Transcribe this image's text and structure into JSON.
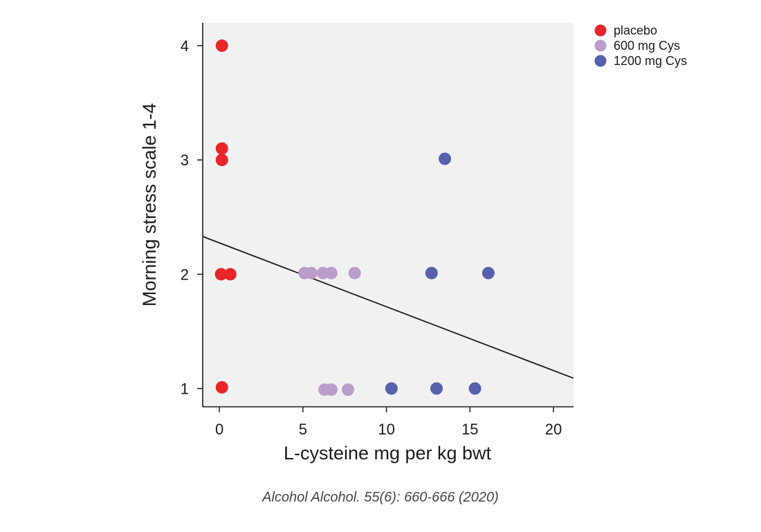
{
  "chart_data": {
    "type": "scatter",
    "title": "",
    "xlabel": "L-cysteine mg per kg bwt",
    "ylabel": "Morning stress scale 1-4",
    "xlim": [
      -1,
      21.2
    ],
    "ylim": [
      0.84,
      4.2
    ],
    "xticks": [
      "0",
      "5",
      "10",
      "15",
      "20"
    ],
    "xtick_values": [
      0,
      5,
      10,
      15,
      20
    ],
    "yticks": [
      "1",
      "2",
      "3",
      "4"
    ],
    "ytick_values": [
      1,
      2,
      3,
      4
    ],
    "grid": false,
    "background": "#f1f1f2",
    "legend_position": "top-right",
    "series": [
      {
        "name": "placebo",
        "color": "#e8262a",
        "x": [
          0.15,
          0.15,
          0.15,
          0.1,
          0.65,
          0.15
        ],
        "y": [
          4.0,
          3.1,
          3.0,
          2.0,
          2.0,
          1.01
        ]
      },
      {
        "name": "600 mg Cys",
        "color": "#bb9ccb",
        "x": [
          5.1,
          5.5,
          6.2,
          6.7,
          8.1,
          6.3,
          6.7,
          7.7
        ],
        "y": [
          2.01,
          2.01,
          2.01,
          2.01,
          2.01,
          0.99,
          0.99,
          0.99
        ]
      },
      {
        "name": "1200 mg Cys",
        "color": "#5660ad",
        "x": [
          13.5,
          12.7,
          16.1,
          10.3,
          13.0,
          15.3
        ],
        "y": [
          3.01,
          2.01,
          2.01,
          1.0,
          1.0,
          1.0
        ]
      }
    ],
    "trendline": {
      "x": [
        -1,
        21.2
      ],
      "y": [
        2.33,
        1.09
      ],
      "color": "#1a1a1a"
    }
  },
  "citation": "Alcohol Alcohol. 55(6): 660-666 (2020)"
}
